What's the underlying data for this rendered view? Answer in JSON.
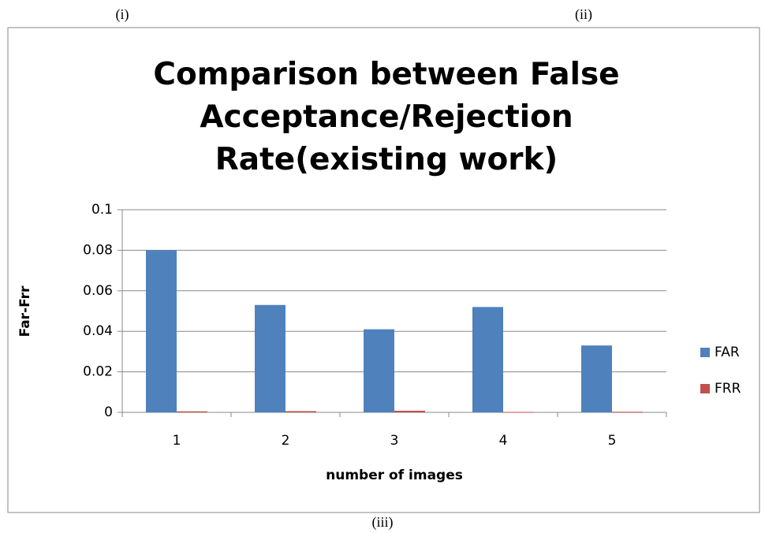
{
  "panel_labels": [
    "(i)",
    "(ii)",
    "(iii)"
  ],
  "chart_data": {
    "type": "bar",
    "title": "Comparison between False Acceptance/Rejection Rate(existing work)",
    "x_label": "number of images",
    "y_label": "Far-Frr",
    "categories": [
      "1",
      "2",
      "3",
      "4",
      "5"
    ],
    "series": [
      {
        "name": "FAR",
        "color": "#4f81bd",
        "values": [
          0.08,
          0.053,
          0.041,
          0.052,
          0.033
        ]
      },
      {
        "name": "FRR",
        "color": "#c0504d",
        "values": [
          0.0005,
          0.0006,
          0.0008,
          0.0002,
          0.0003
        ]
      }
    ],
    "ylim": [
      0,
      0.1
    ],
    "yticks": [
      0,
      0.02,
      0.04,
      0.06,
      0.08,
      0.1
    ],
    "grid": true,
    "legend": "right"
  }
}
